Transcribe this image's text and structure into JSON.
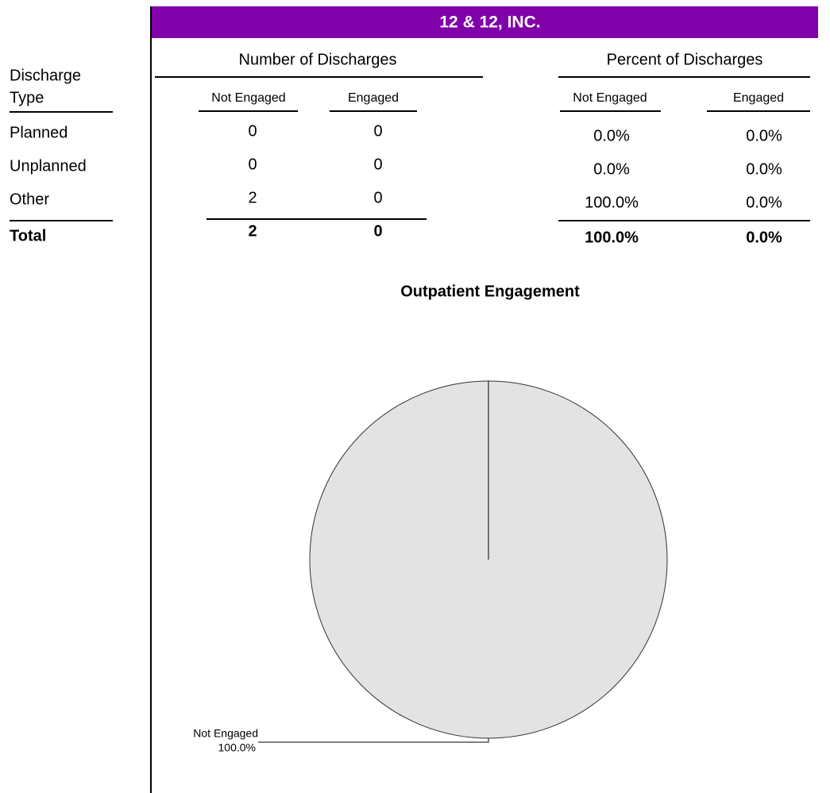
{
  "header": {
    "title": "12 & 12, INC."
  },
  "table": {
    "row_header": [
      "Discharge",
      "Type"
    ],
    "groups": [
      "Number of Discharges",
      "Percent of Discharges"
    ],
    "columns": [
      "Not Engaged",
      "Engaged",
      "Not Engaged",
      "Engaged"
    ],
    "rows": [
      [
        "Planned",
        0,
        0,
        "0.0%",
        "0.0%"
      ],
      [
        "Unplanned",
        0,
        0,
        "0.0%",
        "0.0%"
      ],
      [
        "Other",
        2,
        0,
        "100.0%",
        "0.0%"
      ]
    ],
    "total": [
      "Total",
      2,
      0,
      "100.0%",
      "0.0%"
    ]
  },
  "chart_data": {
    "type": "pie",
    "title": "Outpatient Engagement",
    "categories": [
      "Not Engaged"
    ],
    "values": [
      100
    ],
    "value_labels": [
      "100.0%"
    ],
    "color": "#e3e3e3"
  }
}
